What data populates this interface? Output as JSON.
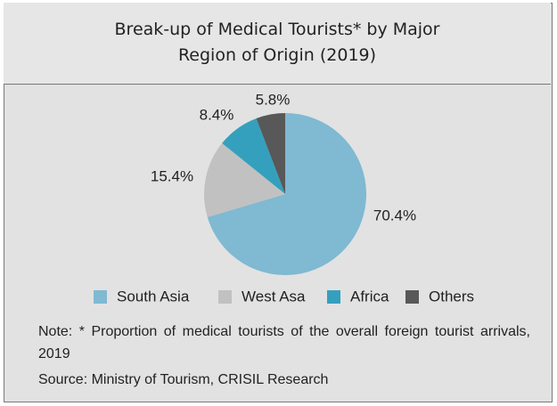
{
  "chart_data": {
    "type": "pie",
    "title": "Break-up of Medical Tourists* by Major Region of Origin (2019)",
    "categories": [
      "South Asia",
      "West Asa",
      "Africa",
      "Others"
    ],
    "values": [
      70.4,
      15.4,
      8.4,
      5.8
    ],
    "value_labels": [
      "70.4%",
      "15.4%",
      "8.4%",
      "5.8%"
    ],
    "colors": [
      "#7fb9d2",
      "#c1c1c1",
      "#35a0bd",
      "#585858"
    ],
    "note": "Note: * Proportion of medical tourists of the overall foreign tourist arrivals, 2019",
    "source": "Source: Ministry of Tourism, CRISIL Research"
  }
}
